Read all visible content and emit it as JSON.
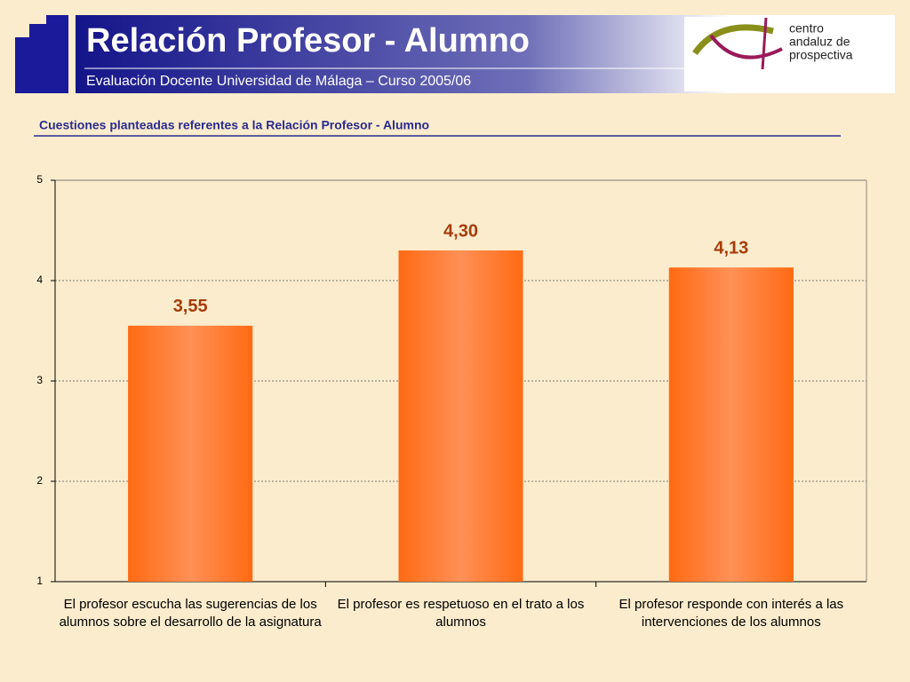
{
  "header": {
    "title": "Relación Profesor - Alumno",
    "subtitle": "Evaluación Docente Universidad de Málaga – Curso 2005/06",
    "logo_lines": [
      "centro",
      "andaluz de",
      "prospectiva"
    ]
  },
  "chart_data": {
    "type": "bar",
    "title": "Cuestiones planteadas referentes a la Relación Profesor - Alumno",
    "categories": [
      "El profesor escucha las sugerencias de los alumnos sobre el desarrollo de la asignatura",
      "El profesor es respetuoso en el trato a los alumnos",
      "El profesor responde con interés a las intervenciones de los alumnos"
    ],
    "values": [
      3.55,
      4.3,
      4.13
    ],
    "value_labels": [
      "3,55",
      "4,30",
      "4,13"
    ],
    "color": "#ff6a1a",
    "ylim": [
      1,
      5
    ],
    "yticks": [
      1,
      2,
      3,
      4,
      5
    ],
    "grid": true
  }
}
